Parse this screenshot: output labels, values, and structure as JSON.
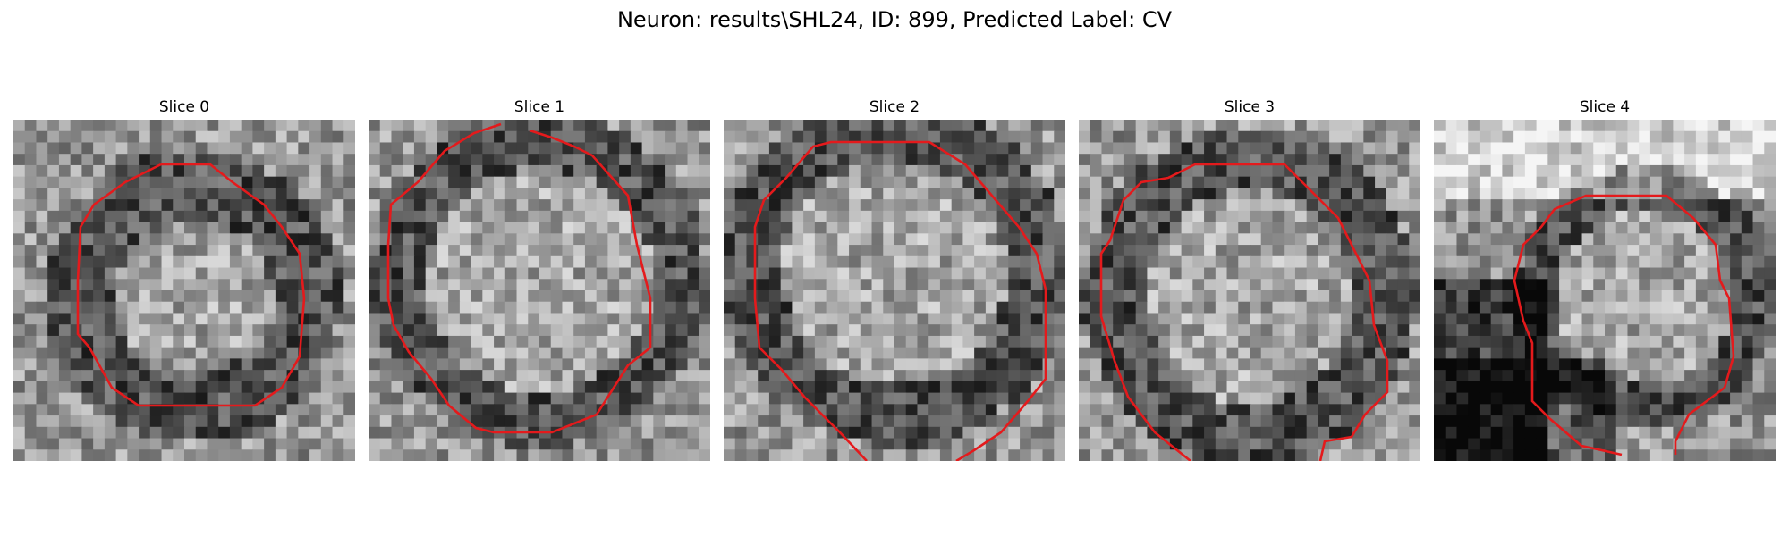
{
  "figure": {
    "title": "Neuron: results\\SHL24, ID: 899, Predicted Label: CV"
  },
  "slices": [
    {
      "label": "Slice 0"
    },
    {
      "label": "Slice 1"
    },
    {
      "label": "Slice 2"
    },
    {
      "label": "Slice 3"
    },
    {
      "label": "Slice 4"
    }
  ],
  "colors": {
    "contour": "#e41a1c",
    "background": "#ffffff"
  }
}
